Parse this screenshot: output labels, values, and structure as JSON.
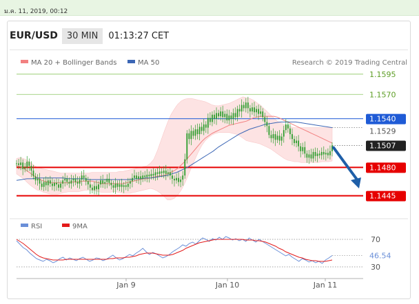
{
  "header": {
    "date_stamp": "ม.ค. 11, 2019, 00:12",
    "pair": "EUR/USD",
    "timeframe": "30 MIN",
    "time": "01:13:27 CET",
    "credit": "Research © 2019 Trading Central"
  },
  "colors": {
    "candle": "#2e9e2e",
    "ma20": "#f28080",
    "bands_fill": "#fde0e0",
    "ma50": "#3b66b5",
    "support": "#e60000",
    "resistance_blue": "#1f5bd6",
    "target_green": "#8cc860",
    "rsi": "#6a8fd8",
    "rsi_ma": "#e31a1a",
    "arrow": "#1f5fa8"
  },
  "chart_data": [
    {
      "type": "candlestick",
      "legend": [
        {
          "name": "MA 20 + Bollinger Bands",
          "color": "#f28080"
        },
        {
          "name": "MA 50",
          "color": "#3b66b5"
        }
      ],
      "x_ticks": [
        "Jan 9",
        "Jan 10",
        "Jan 11"
      ],
      "ylim": [
        1.1432,
        1.1605
      ],
      "levels": [
        {
          "label": "1.1595",
          "value": 1.1595,
          "kind": "target"
        },
        {
          "label": "1.1570",
          "value": 1.157,
          "kind": "target"
        },
        {
          "label": "1.1540",
          "value": 1.154,
          "kind": "pivot"
        },
        {
          "label": "1.1529",
          "value": 1.1529,
          "kind": "bb-upper"
        },
        {
          "label": "1.1507",
          "value": 1.1507,
          "kind": "last"
        },
        {
          "label": "1.1480",
          "value": 1.148,
          "kind": "support"
        },
        {
          "label": "1.1445",
          "value": 1.1445,
          "kind": "support"
        }
      ],
      "close": [
        1.1485,
        1.1483,
        1.1486,
        1.1478,
        1.148,
        1.1487,
        1.1482,
        1.1476,
        1.1469,
        1.1464,
        1.1466,
        1.146,
        1.1456,
        1.1462,
        1.1458,
        1.1464,
        1.146,
        1.1457,
        1.1461,
        1.1459,
        1.1455,
        1.146,
        1.1464,
        1.1466,
        1.1462,
        1.146,
        1.1464,
        1.1466,
        1.1462,
        1.146,
        1.1465,
        1.147,
        1.1467,
        1.1463,
        1.1459,
        1.1455,
        1.1452,
        1.1457,
        1.1453,
        1.1459,
        1.1464,
        1.146,
        1.1462,
        1.1466,
        1.1461,
        1.1458,
        1.1455,
        1.146,
        1.1456,
        1.1459,
        1.1456,
        1.1458,
        1.1456,
        1.146,
        1.1463,
        1.1467,
        1.147,
        1.1466,
        1.1469,
        1.1466,
        1.147,
        1.1468,
        1.1471,
        1.1469,
        1.1472,
        1.147,
        1.1474,
        1.1472,
        1.1475,
        1.1473,
        1.1476,
        1.1472,
        1.1474,
        1.147,
        1.1466,
        1.1464,
        1.1467,
        1.1462,
        1.1465,
        1.147,
        1.149,
        1.1522,
        1.1515,
        1.1525,
        1.1519,
        1.1527,
        1.1521,
        1.153,
        1.1525,
        1.1533,
        1.1529,
        1.1541,
        1.1536,
        1.1545,
        1.154,
        1.1547,
        1.1543,
        1.1549,
        1.1542,
        1.1546,
        1.1538,
        1.1544,
        1.154,
        1.1547,
        1.1542,
        1.1552,
        1.1549,
        1.1557,
        1.1553,
        1.156,
        1.1553,
        1.1549,
        1.1554,
        1.1548,
        1.1552,
        1.1546,
        1.1549,
        1.1542,
        1.1536,
        1.1531,
        1.152,
        1.1516,
        1.1521,
        1.1514,
        1.1519,
        1.1513,
        1.1518,
        1.1526,
        1.1533,
        1.1528,
        1.1521,
        1.1515,
        1.151,
        1.1513,
        1.1506,
        1.15,
        1.1505,
        1.1497,
        1.1492,
        1.1496,
        1.1491,
        1.1499,
        1.1494,
        1.1497,
        1.1495,
        1.1499,
        1.1496,
        1.1498,
        1.1495,
        1.15,
        1.1507
      ],
      "ma20": [
        1.1482,
        1.1481,
        1.1479,
        1.1476,
        1.1473,
        1.147,
        1.1467,
        1.1465,
        1.1463,
        1.1462,
        1.1461,
        1.1461,
        1.1461,
        1.1461,
        1.1461,
        1.1461,
        1.1462,
        1.1462,
        1.1462,
        1.1463,
        1.1463,
        1.1463,
        1.1463,
        1.1462,
        1.1461,
        1.146,
        1.146,
        1.146,
        1.146,
        1.146,
        1.146,
        1.146,
        1.1461,
        1.1462,
        1.1463,
        1.1464,
        1.1465,
        1.1466,
        1.1466,
        1.1467,
        1.1468,
        1.1469,
        1.147,
        1.147,
        1.1472,
        1.1474,
        1.1476,
        1.1479,
        1.1483,
        1.1487,
        1.1492,
        1.1497,
        1.1502,
        1.1507,
        1.1512,
        1.1516,
        1.1519,
        1.1522,
        1.1524,
        1.1526,
        1.1528,
        1.153,
        1.1532,
        1.1533,
        1.1534,
        1.1535,
        1.1536,
        1.1537,
        1.1539,
        1.1541,
        1.1542,
        1.1543,
        1.1543,
        1.1543,
        1.1543,
        1.1543,
        1.1542,
        1.154,
        1.1538,
        1.1536,
        1.1534,
        1.1532,
        1.153,
        1.1528,
        1.1526,
        1.1524,
        1.1522,
        1.152,
        1.1518,
        1.1516,
        1.1514,
        1.1512,
        1.151
      ],
      "bb_upper": [
        1.1491,
        1.1492,
        1.1491,
        1.1489,
        1.1486,
        1.1483,
        1.148,
        1.1479,
        1.1478,
        1.1477,
        1.1476,
        1.1475,
        1.1474,
        1.1473,
        1.1473,
        1.1473,
        1.1473,
        1.1473,
        1.1473,
        1.1473,
        1.1473,
        1.1473,
        1.1474,
        1.1474,
        1.1474,
        1.1474,
        1.1474,
        1.1474,
        1.1474,
        1.1474,
        1.1475,
        1.1475,
        1.1476,
        1.1477,
        1.1478,
        1.1479,
        1.148,
        1.1481,
        1.1482,
        1.1485,
        1.149,
        1.15,
        1.1512,
        1.1524,
        1.1535,
        1.1545,
        1.1552,
        1.1558,
        1.1562,
        1.1564,
        1.1565,
        1.1565,
        1.1564,
        1.1563,
        1.1562,
        1.1561,
        1.1559,
        1.1557,
        1.1556,
        1.1556,
        1.1557,
        1.1558,
        1.1559,
        1.1561,
        1.1563,
        1.1565,
        1.1567,
        1.1566,
        1.1565,
        1.1563,
        1.156,
        1.1557,
        1.1553,
        1.1549,
        1.1545,
        1.1541,
        1.1537,
        1.1535,
        1.1533,
        1.1531,
        1.153,
        1.1529,
        1.1529,
        1.1529,
        1.1529,
        1.1529,
        1.1529,
        1.1529,
        1.1529,
        1.1529,
        1.1529,
        1.1529,
        1.1529
      ],
      "bb_lower": [
        1.1472,
        1.1469,
        1.1466,
        1.1462,
        1.1458,
        1.1455,
        1.1452,
        1.1451,
        1.1449,
        1.1448,
        1.1447,
        1.1447,
        1.1447,
        1.1448,
        1.1449,
        1.145,
        1.145,
        1.145,
        1.145,
        1.1451,
        1.1452,
        1.1452,
        1.1452,
        1.1451,
        1.145,
        1.1449,
        1.1449,
        1.1449,
        1.145,
        1.145,
        1.1449,
        1.1448,
        1.1448,
        1.1448,
        1.1449,
        1.145,
        1.1451,
        1.1452,
        1.1453,
        1.1454,
        1.1453,
        1.1451,
        1.1448,
        1.1444,
        1.144,
        1.144,
        1.1442,
        1.1446,
        1.1452,
        1.146,
        1.147,
        1.148,
        1.149,
        1.1499,
        1.1507,
        1.1513,
        1.1517,
        1.152,
        1.1522,
        1.1523,
        1.1523,
        1.1523,
        1.1523,
        1.1522,
        1.1521,
        1.1519,
        1.1516,
        1.1513,
        1.1512,
        1.1511,
        1.151,
        1.1509,
        1.1507,
        1.1505,
        1.1503,
        1.15,
        1.1497,
        1.1494,
        1.1491,
        1.1489,
        1.1488,
        1.1487,
        1.1487,
        1.1486,
        1.1486,
        1.1486,
        1.1486,
        1.1486,
        1.1486,
        1.1487,
        1.1487,
        1.1487,
        1.1488
      ],
      "ma50": [
        1.1464,
        1.1465,
        1.1466,
        1.1466,
        1.1467,
        1.1467,
        1.1467,
        1.1467,
        1.1467,
        1.1467,
        1.1466,
        1.1466,
        1.1466,
        1.1466,
        1.1465,
        1.1465,
        1.1465,
        1.1465,
        1.1465,
        1.1465,
        1.1465,
        1.1465,
        1.1465,
        1.1466,
        1.1466,
        1.1467,
        1.1467,
        1.1468,
        1.1469,
        1.147,
        1.1472,
        1.1474,
        1.1477,
        1.148,
        1.1484,
        1.1488,
        1.1492,
        1.1496,
        1.15,
        1.1505,
        1.1509,
        1.1513,
        1.1517,
        1.1521,
        1.1524,
        1.1527,
        1.1529,
        1.1531,
        1.1533,
        1.1534,
        1.1535,
        1.1536,
        1.1536,
        1.1536,
        1.1536,
        1.1535,
        1.1534,
        1.1533,
        1.1532,
        1.1531,
        1.153,
        1.1529
      ]
    },
    {
      "type": "line",
      "legend": [
        {
          "name": "RSI",
          "color": "#6a8fd8"
        },
        {
          "name": "9MA",
          "color": "#e31a1a"
        }
      ],
      "ylim": [
        22,
        78
      ],
      "y_ticks": [
        "70",
        "30"
      ],
      "last_value": "46.54",
      "rsi": [
        68,
        63,
        58,
        55,
        50,
        46,
        42,
        40,
        38,
        41,
        39,
        36,
        38,
        42,
        44,
        40,
        43,
        41,
        39,
        42,
        44,
        41,
        38,
        40,
        43,
        42,
        39,
        41,
        44,
        47,
        43,
        40,
        42,
        45,
        48,
        46,
        50,
        53,
        57,
        52,
        48,
        51,
        49,
        46,
        43,
        45,
        48,
        52,
        55,
        58,
        62,
        60,
        64,
        66,
        63,
        68,
        72,
        70,
        67,
        71,
        69,
        73,
        70,
        74,
        72,
        69,
        71,
        68,
        70,
        67,
        72,
        69,
        66,
        70,
        67,
        64,
        61,
        58,
        55,
        52,
        49,
        46,
        48,
        44,
        41,
        38,
        42,
        40,
        37,
        39,
        36,
        38,
        35,
        40,
        43,
        46.54
      ],
      "rsi_ma": [
        70,
        67,
        64,
        60,
        56,
        52,
        48,
        45,
        43,
        42,
        41,
        40,
        40,
        40,
        40,
        41,
        41,
        41,
        41,
        41,
        41,
        41,
        41,
        41,
        41,
        41,
        41,
        41,
        42,
        42,
        43,
        43,
        43,
        44,
        44,
        45,
        46,
        48,
        49,
        50,
        50,
        50,
        49,
        48,
        47,
        47,
        47,
        48,
        50,
        52,
        54,
        57,
        59,
        61,
        63,
        65,
        66,
        67,
        68,
        69,
        70,
        70,
        70,
        70,
        70,
        70,
        70,
        70,
        70,
        69,
        69,
        69,
        68,
        68,
        67,
        66,
        64,
        62,
        60,
        57,
        55,
        52,
        50,
        48,
        46,
        44,
        43,
        41,
        40,
        39,
        39,
        38,
        38,
        38,
        39,
        40
      ]
    }
  ]
}
